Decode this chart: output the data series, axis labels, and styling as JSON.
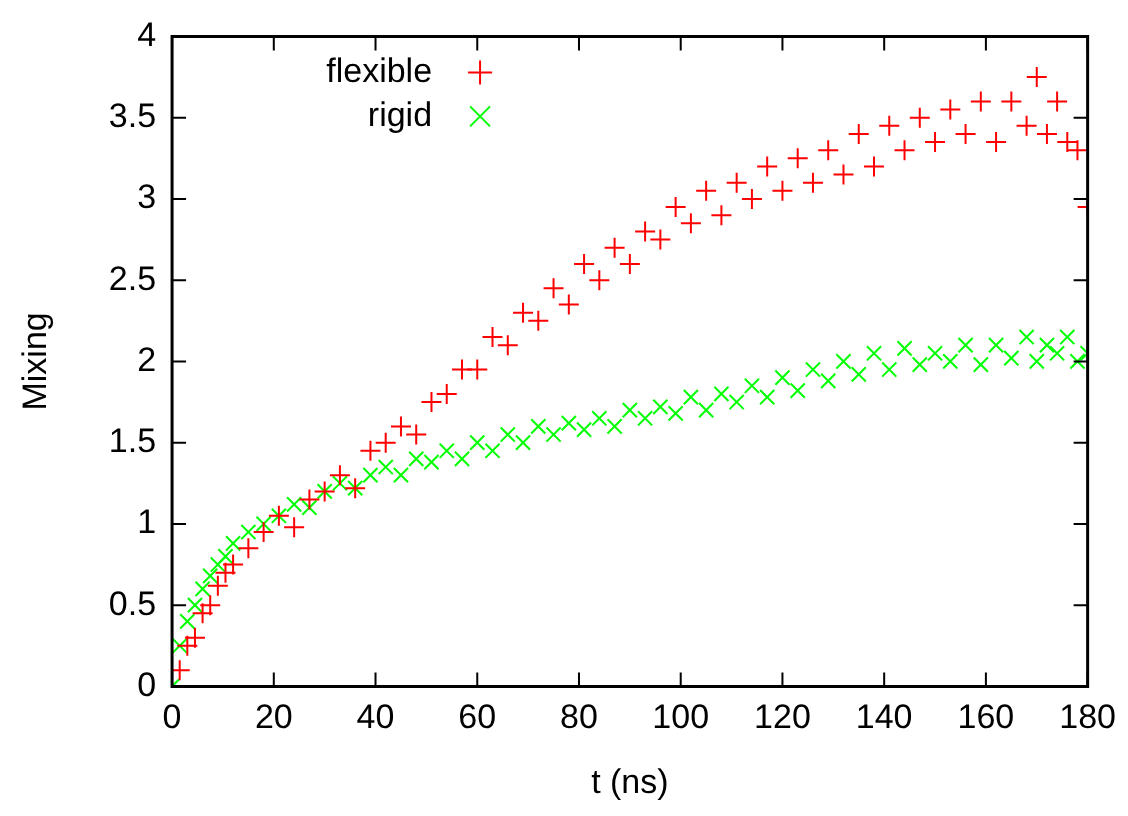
{
  "chart_data": {
    "type": "scatter",
    "xlabel": "t (ns)",
    "ylabel": "Mixing",
    "xlim": [
      0,
      180
    ],
    "xticks": [
      0,
      20,
      40,
      60,
      80,
      100,
      120,
      140,
      160,
      180
    ],
    "ylim": [
      0,
      4
    ],
    "yticks": [
      0,
      0.5,
      1,
      1.5,
      2,
      2.5,
      3,
      3.5,
      4
    ],
    "grid": false,
    "legend": "top left",
    "marker": "cross",
    "x": [
      0,
      1.5,
      3,
      4.5,
      6,
      7.5,
      9,
      10.5,
      12,
      15,
      18,
      21,
      24,
      27,
      30,
      33,
      36,
      39,
      42,
      45,
      48,
      51,
      54,
      57,
      60,
      63,
      66,
      69,
      72,
      75,
      78,
      81,
      84,
      87,
      90,
      93,
      96,
      99,
      102,
      105,
      108,
      111,
      114,
      117,
      120,
      123,
      126,
      129,
      132,
      135,
      138,
      141,
      144,
      147,
      150,
      153,
      156,
      159,
      162,
      165,
      168,
      170,
      172,
      174,
      176,
      178,
      180
    ],
    "series": [
      {
        "name": "flexible",
        "color": "#ff0000",
        "values": [
          0,
          0.1,
          0.25,
          0.3,
          0.45,
          0.5,
          0.62,
          0.7,
          0.75,
          0.85,
          0.95,
          1.05,
          0.98,
          1.15,
          1.2,
          1.3,
          1.22,
          1.45,
          1.5,
          1.6,
          1.55,
          1.75,
          1.8,
          1.95,
          1.95,
          2.15,
          2.1,
          2.3,
          2.25,
          2.45,
          2.35,
          2.6,
          2.5,
          2.7,
          2.6,
          2.8,
          2.75,
          2.95,
          2.85,
          3.05,
          2.9,
          3.1,
          3.0,
          3.2,
          3.05,
          3.25,
          3.1,
          3.3,
          3.15,
          3.4,
          3.2,
          3.45,
          3.3,
          3.5,
          3.35,
          3.55,
          3.4,
          3.6,
          3.35,
          3.6,
          3.45,
          3.75,
          3.4,
          3.6,
          3.35,
          3.3,
          2.95
        ]
      },
      {
        "name": "rigid",
        "color": "#00ff00",
        "values": [
          0,
          0.25,
          0.4,
          0.5,
          0.6,
          0.68,
          0.75,
          0.8,
          0.88,
          0.95,
          1.0,
          1.05,
          1.12,
          1.1,
          1.2,
          1.25,
          1.22,
          1.3,
          1.35,
          1.3,
          1.4,
          1.38,
          1.45,
          1.4,
          1.5,
          1.45,
          1.55,
          1.5,
          1.6,
          1.55,
          1.62,
          1.58,
          1.65,
          1.6,
          1.7,
          1.65,
          1.72,
          1.68,
          1.78,
          1.7,
          1.8,
          1.75,
          1.85,
          1.78,
          1.9,
          1.82,
          1.95,
          1.88,
          2.0,
          1.92,
          2.05,
          1.95,
          2.08,
          1.98,
          2.05,
          2.0,
          2.1,
          1.98,
          2.1,
          2.02,
          2.15,
          2.0,
          2.1,
          2.05,
          2.15,
          2.0,
          2.05
        ]
      }
    ]
  }
}
